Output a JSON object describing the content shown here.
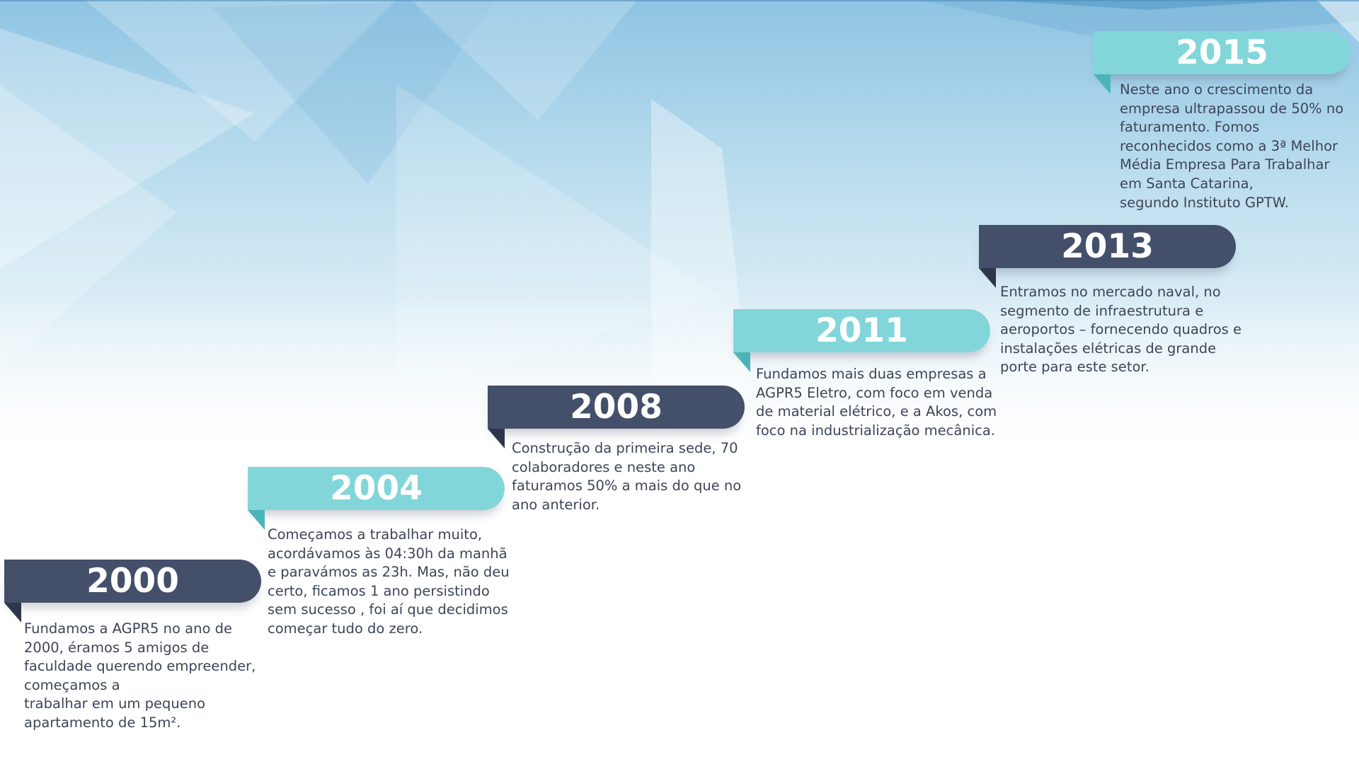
{
  "colors": {
    "dark_banner": "#444f69",
    "teal_banner": "#82d6d9",
    "text": "#3e4558",
    "background_accent": "#8fc4e3"
  },
  "timeline": [
    {
      "year": "2000",
      "style": "dark",
      "text": "Fundamos a AGPR5 no ano de\n2000, éramos 5 amigos de\nfaculdade querendo empreender,\ncomeçamos a\ntrabalhar em um pequeno\napartamento de 15m²."
    },
    {
      "year": "2004",
      "style": "teal",
      "text": "Começamos a trabalhar muito,\nacordávamos às 04:30h da manhã\ne paravámos as 23h. Mas, não deu\ncerto, ficamos 1 ano persistindo\nsem sucesso , foi aí que decidimos\ncomeçar tudo do zero."
    },
    {
      "year": "2008",
      "style": "dark",
      "text": "Construção da primeira sede, 70\ncolaboradores e neste ano\nfaturamos 50% a mais do que no\nano anterior."
    },
    {
      "year": "2011",
      "style": "teal",
      "text": "Fundamos mais duas empresas  a\nAGPR5 Eletro, com foco em venda\nde material elétrico, e a Akos, com\nfoco na industrialização mecânica."
    },
    {
      "year": "2013",
      "style": "dark",
      "text": "Entramos no mercado naval, no\nsegmento de infraestrutura e\naeroportos – fornecendo quadros e\ninstalações elétricas de grande\nporte para este setor."
    },
    {
      "year": "2015",
      "style": "teal",
      "text": "Neste ano o crescimento da\nempresa ultrapassou de 50% no\nfaturamento. Fomos\nreconhecidos como a 3ª Melhor\nMédia Empresa Para Trabalhar\nem Santa Catarina,\nsegundo Instituto GPTW."
    }
  ]
}
